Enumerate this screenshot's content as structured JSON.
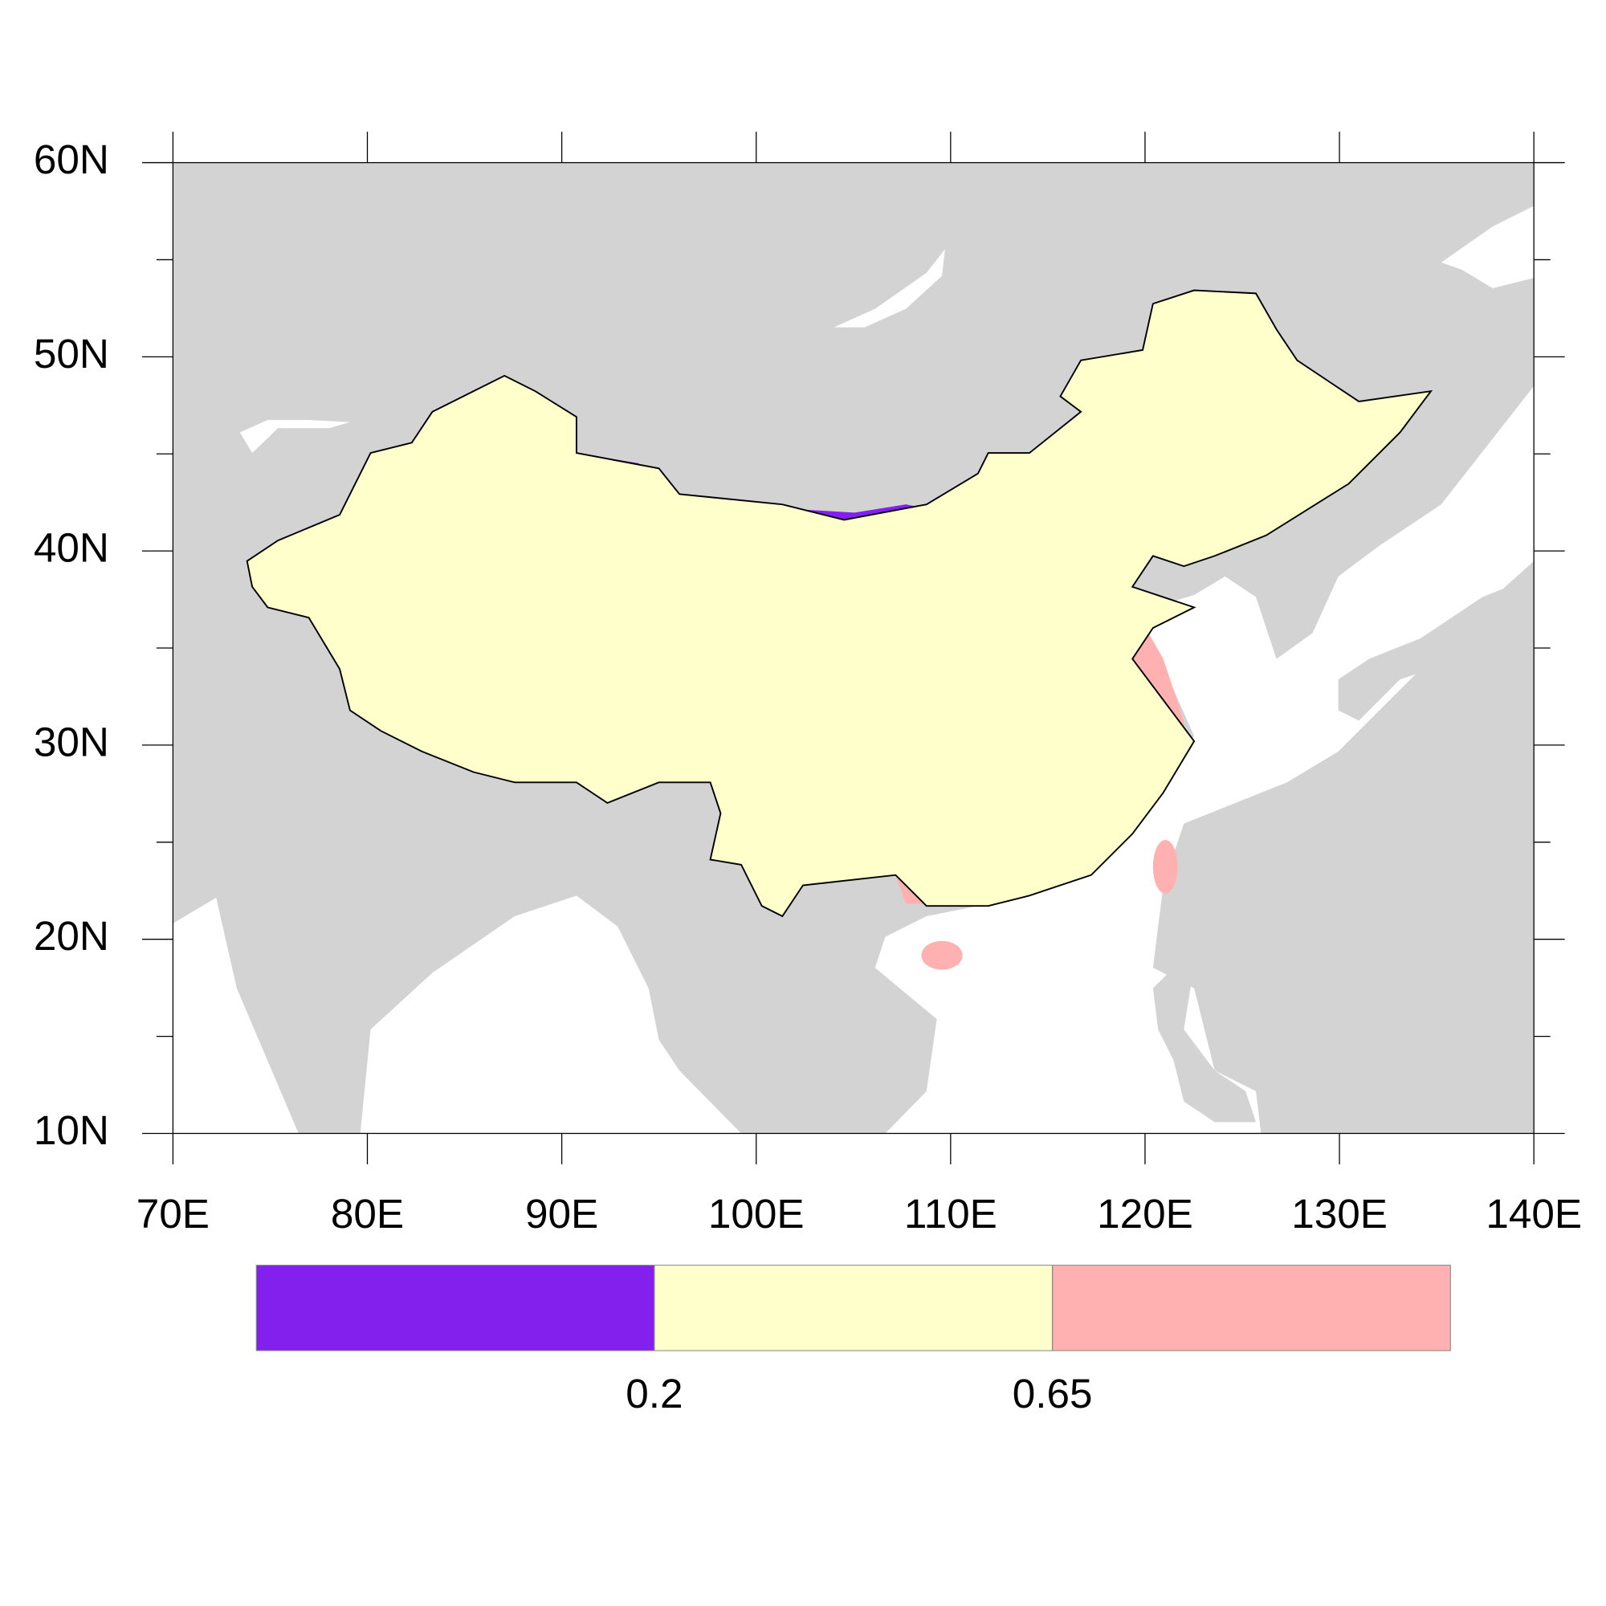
{
  "map": {
    "xlim": [
      70,
      140
    ],
    "ylim": [
      10,
      60
    ],
    "xticks": [
      {
        "value": 70,
        "label": "70E"
      },
      {
        "value": 80,
        "label": "80E"
      },
      {
        "value": 90,
        "label": "90E"
      },
      {
        "value": 100,
        "label": "100E"
      },
      {
        "value": 110,
        "label": "110E"
      },
      {
        "value": 120,
        "label": "120E"
      },
      {
        "value": 130,
        "label": "130E"
      },
      {
        "value": 140,
        "label": "140E"
      }
    ],
    "yticks": [
      {
        "value": 10,
        "label": "10N"
      },
      {
        "value": 20,
        "label": "20N"
      },
      {
        "value": 30,
        "label": "30N"
      },
      {
        "value": 40,
        "label": "40N"
      },
      {
        "value": 50,
        "label": "50N"
      },
      {
        "value": 60,
        "label": "60N"
      }
    ],
    "yminor": [
      15,
      25,
      35,
      45,
      55
    ],
    "land_color": "#d3d3d3",
    "colorbar": {
      "levels": [
        0.2,
        0.65
      ],
      "colors": [
        "#8420ee",
        "#ffffcc",
        "#ffb0b0"
      ]
    }
  }
}
